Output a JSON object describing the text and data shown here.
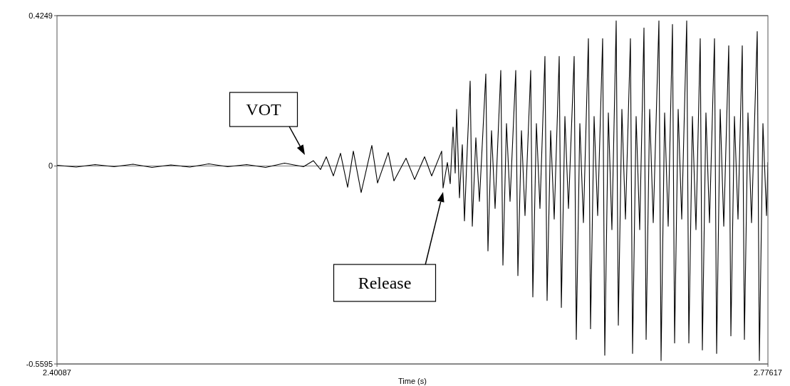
{
  "chart_data": {
    "type": "line",
    "xlabel": "Time (s)",
    "xlim": [
      2.40087,
      2.77617
    ],
    "xticks": [
      2.40087,
      2.77617
    ],
    "ylim": [
      -0.5595,
      0.4249
    ],
    "yticks": [
      -0.5595,
      0,
      0.4249
    ],
    "grid": "y",
    "marker": "none",
    "line_style": "solid",
    "annotations": [
      "VOT",
      "Release"
    ],
    "series": [
      {
        "color": "#000000",
        "x": [
          2.40087,
          2.411,
          2.421,
          2.431,
          2.441,
          2.451,
          2.461,
          2.471,
          2.481,
          2.491,
          2.501,
          2.511,
          2.521,
          2.531,
          2.53625,
          2.53999,
          2.54302,
          2.54678,
          2.55054,
          2.5543,
          2.55731,
          2.56144,
          2.56708,
          2.57009,
          2.57573,
          2.57874,
          2.58513,
          2.58965,
          2.59491,
          2.59867,
          2.60394,
          2.60469,
          2.60695,
          2.60845,
          2.60995,
          2.61108,
          2.61183,
          2.61334,
          2.61484,
          2.61597,
          2.61747,
          2.61898,
          2.62011,
          2.62199,
          2.62387,
          2.62725,
          2.62838,
          2.63026,
          2.63214,
          2.63515,
          2.63628,
          2.63816,
          2.64004,
          2.64305,
          2.64418,
          2.64606,
          2.64794,
          2.65094,
          2.65207,
          2.65395,
          2.65583,
          2.65846,
          2.65959,
          2.66147,
          2.66335,
          2.66599,
          2.66712,
          2.669,
          2.67088,
          2.67388,
          2.67501,
          2.67689,
          2.67877,
          2.6814,
          2.68253,
          2.68441,
          2.68629,
          2.68892,
          2.69005,
          2.69193,
          2.69381,
          2.69607,
          2.6972,
          2.69908,
          2.70096,
          2.70359,
          2.70472,
          2.7066,
          2.70848,
          2.71074,
          2.71187,
          2.71375,
          2.71563,
          2.71863,
          2.71976,
          2.72164,
          2.72352,
          2.72578,
          2.72691,
          2.72879,
          2.73067,
          2.7333,
          2.73443,
          2.73631,
          2.73819,
          2.74044,
          2.74157,
          2.74345,
          2.74533,
          2.74797,
          2.7491,
          2.75098,
          2.75286,
          2.75549,
          2.75662,
          2.7585,
          2.76038,
          2.76263,
          2.76376,
          2.76564,
          2.76752,
          2.77053,
          2.77166,
          2.77354,
          2.77542,
          2.77617
        ],
        "values": [
          0.002,
          -0.003,
          0.004,
          -0.002,
          0.005,
          -0.004,
          0.003,
          -0.003,
          0.006,
          -0.002,
          0.004,
          -0.004,
          0.008,
          -0.002,
          0.015,
          -0.01,
          0.026,
          -0.028,
          0.036,
          -0.06,
          0.042,
          -0.075,
          0.058,
          -0.048,
          0.038,
          -0.042,
          0.022,
          -0.038,
          0.026,
          -0.028,
          0.042,
          -0.062,
          0.01,
          -0.05,
          0.11,
          -0.02,
          0.16,
          -0.09,
          0.06,
          -0.155,
          0.05,
          0.24,
          -0.17,
          0.08,
          -0.1,
          0.26,
          -0.24,
          0.1,
          -0.12,
          0.27,
          -0.28,
          0.12,
          -0.1,
          0.27,
          -0.31,
          0.1,
          -0.14,
          0.27,
          -0.37,
          0.12,
          -0.12,
          0.31,
          -0.38,
          0.1,
          -0.15,
          0.31,
          -0.4,
          0.14,
          -0.12,
          0.31,
          -0.49,
          0.12,
          -0.16,
          0.36,
          -0.46,
          0.14,
          -0.14,
          0.36,
          -0.535,
          0.15,
          -0.18,
          0.41,
          -0.45,
          0.16,
          -0.15,
          0.36,
          -0.53,
          0.14,
          -0.18,
          0.39,
          -0.49,
          0.16,
          -0.16,
          0.41,
          -0.55,
          0.15,
          -0.17,
          0.4,
          -0.5,
          0.16,
          -0.15,
          0.41,
          -0.5,
          0.14,
          -0.18,
          0.36,
          -0.52,
          0.15,
          -0.16,
          0.36,
          -0.53,
          0.16,
          -0.17,
          0.34,
          -0.48,
          0.14,
          -0.15,
          0.34,
          -0.49,
          0.15,
          -0.16,
          0.38,
          -0.55,
          0.12,
          -0.14,
          0.01
        ]
      }
    ]
  }
}
